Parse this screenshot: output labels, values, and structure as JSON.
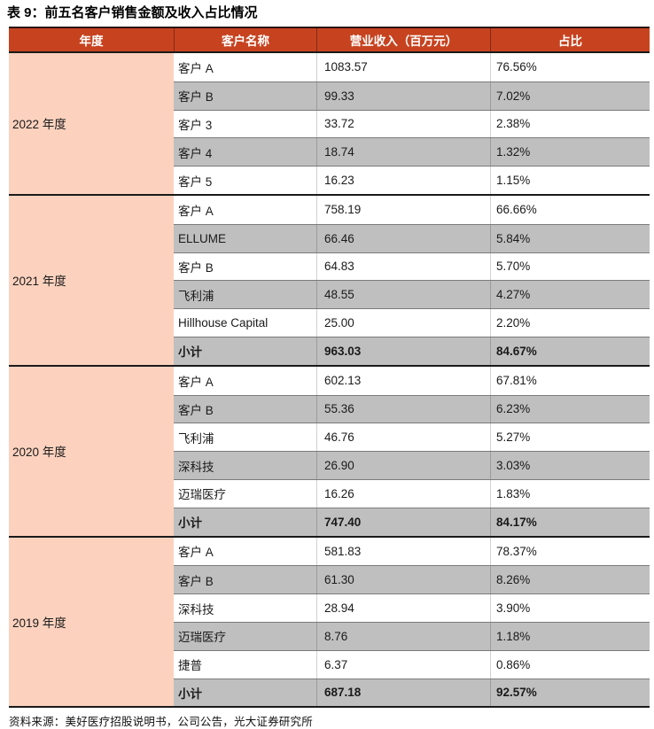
{
  "title": "表 9：前五名客户销售金额及收入占比情况",
  "header": {
    "year": "年度",
    "customer": "客户名称",
    "revenue": "营业收入（百万元）",
    "share": "占比"
  },
  "sections": [
    {
      "year": "2022 年度",
      "rows": [
        {
          "name": "客户 A",
          "revenue": "1083.57",
          "share": "76.56%"
        },
        {
          "name": "客户 B",
          "revenue": "99.33",
          "share": "7.02%"
        },
        {
          "name": "客户 3",
          "revenue": "33.72",
          "share": "2.38%"
        },
        {
          "name": "客户 4",
          "revenue": "18.74",
          "share": "1.32%"
        },
        {
          "name": "客户 5",
          "revenue": "16.23",
          "share": "1.15%"
        }
      ]
    },
    {
      "year": "2021 年度",
      "rows": [
        {
          "name": "客户 A",
          "revenue": "758.19",
          "share": "66.66%"
        },
        {
          "name": "ELLUME",
          "revenue": "66.46",
          "share": "5.84%"
        },
        {
          "name": "客户 B",
          "revenue": "64.83",
          "share": "5.70%"
        },
        {
          "name": "飞利浦",
          "revenue": "48.55",
          "share": "4.27%"
        },
        {
          "name": "Hillhouse Capital",
          "revenue": "25.00",
          "share": "2.20%"
        },
        {
          "name": "小计",
          "revenue": "963.03",
          "share": "84.67%",
          "subtotal": true
        }
      ]
    },
    {
      "year": "2020 年度",
      "rows": [
        {
          "name": "客户 A",
          "revenue": "602.13",
          "share": "67.81%"
        },
        {
          "name": "客户 B",
          "revenue": "55.36",
          "share": "6.23%"
        },
        {
          "name": "飞利浦",
          "revenue": "46.76",
          "share": "5.27%"
        },
        {
          "name": "深科技",
          "revenue": "26.90",
          "share": "3.03%"
        },
        {
          "name": "迈瑞医疗",
          "revenue": "16.26",
          "share": "1.83%"
        },
        {
          "name": "小计",
          "revenue": "747.40",
          "share": "84.17%",
          "subtotal": true
        }
      ]
    },
    {
      "year": "2019 年度",
      "rows": [
        {
          "name": "客户 A",
          "revenue": "581.83",
          "share": "78.37%"
        },
        {
          "name": "客户 B",
          "revenue": "61.30",
          "share": "8.26%"
        },
        {
          "name": "深科技",
          "revenue": "28.94",
          "share": "3.90%"
        },
        {
          "name": "迈瑞医疗",
          "revenue": "8.76",
          "share": "1.18%"
        },
        {
          "name": "捷普",
          "revenue": "6.37",
          "share": "0.86%"
        },
        {
          "name": "小计",
          "revenue": "687.18",
          "share": "92.57%",
          "subtotal": true
        }
      ]
    }
  ],
  "source": "资料来源：美好医疗招股说明书，公司公告，光大证券研究所",
  "colors": {
    "headerBg": "#c74320",
    "headerText": "#ffffff",
    "yearBg": "#fcd2be",
    "stripeBg": "#bfbfbf",
    "rowLine": "#7a7a7a",
    "sectionLine": "#1a1a1a",
    "topLine": "#2b1509",
    "text": "#1a1a1a"
  }
}
